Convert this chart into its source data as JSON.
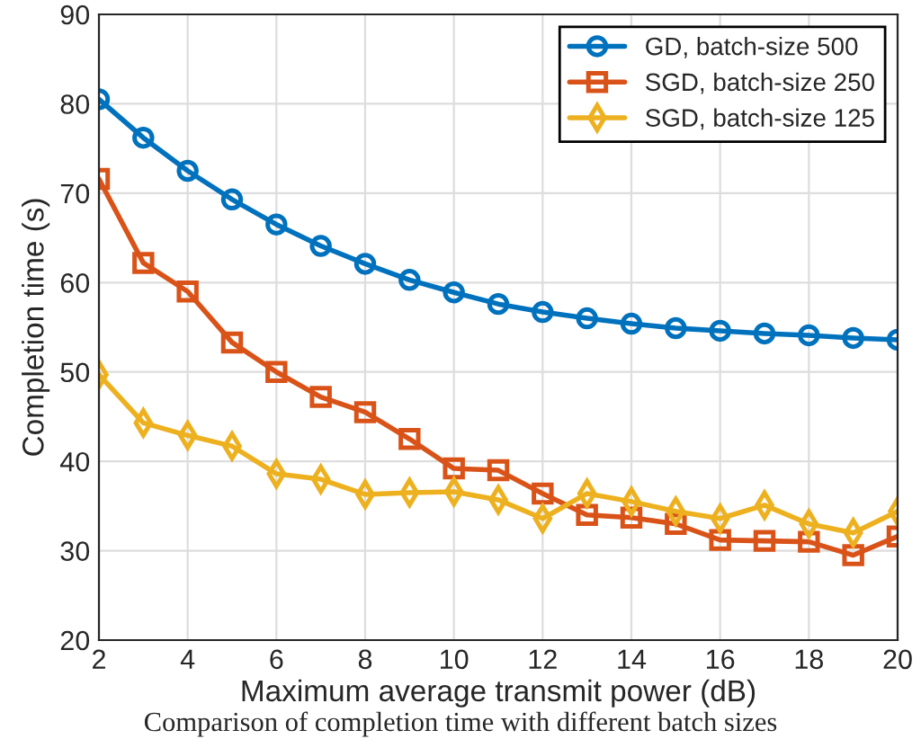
{
  "chart_data": {
    "type": "line",
    "xlabel": "Maximum average transmit power (dB)",
    "ylabel": "Completion time (s)",
    "x": [
      2,
      3,
      4,
      5,
      6,
      7,
      8,
      9,
      10,
      11,
      12,
      13,
      14,
      15,
      16,
      17,
      18,
      19,
      20
    ],
    "series": [
      {
        "name": "GD, batch-size 500",
        "color": "#0072bd",
        "marker": "circle",
        "values": [
          80.5,
          76.2,
          72.5,
          69.3,
          66.5,
          64.1,
          62.1,
          60.3,
          58.9,
          57.6,
          56.7,
          56.0,
          55.4,
          54.9,
          54.6,
          54.3,
          54.1,
          53.8,
          53.6
        ]
      },
      {
        "name": "SGD, batch-size 250",
        "color": "#d95319",
        "marker": "square",
        "values": [
          71.6,
          62.2,
          59.0,
          53.3,
          50.0,
          47.2,
          45.5,
          42.5,
          39.2,
          39.0,
          36.4,
          34.0,
          33.7,
          33.0,
          31.2,
          31.1,
          31.0,
          29.5,
          31.6
        ]
      },
      {
        "name": "SGD, batch-size 125",
        "color": "#edb120",
        "marker": "diamond",
        "values": [
          49.7,
          44.3,
          42.9,
          41.7,
          38.6,
          38.0,
          36.3,
          36.5,
          36.6,
          35.7,
          33.6,
          36.4,
          35.5,
          34.4,
          33.6,
          35.1,
          33.0,
          32.0,
          34.4
        ]
      }
    ],
    "xlim": [
      2,
      20
    ],
    "xticks": [
      2,
      4,
      6,
      8,
      10,
      12,
      14,
      16,
      18,
      20
    ],
    "ylim": [
      20,
      90
    ],
    "yticks": [
      20,
      30,
      40,
      50,
      60,
      70,
      80,
      90
    ],
    "grid": true,
    "legend": "top right",
    "line_style": "solid",
    "annotations": [
      "Comparison of completion time with different batch sizes"
    ]
  }
}
